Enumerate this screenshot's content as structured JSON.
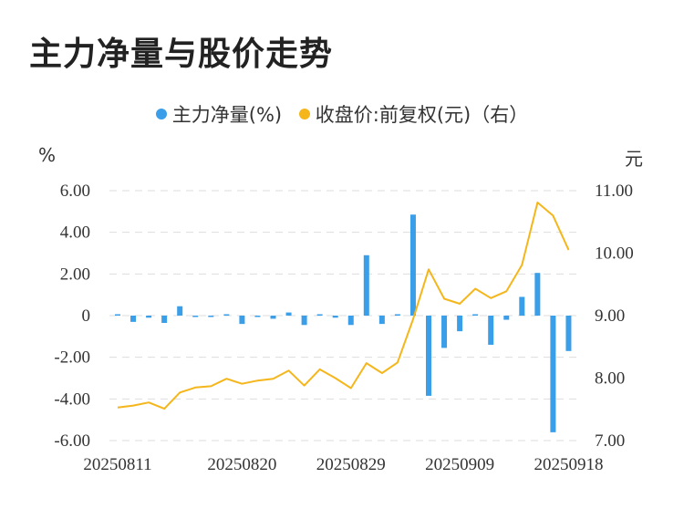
{
  "title": "主力净量与股价走势",
  "legend": {
    "net": "主力净量(%)",
    "price": "收盘价:前复权(元)（右）"
  },
  "axis": {
    "left_unit": "%",
    "right_unit": "元"
  },
  "colors": {
    "bar": "#3a9ee8",
    "line": "#f4b61a",
    "grid": "#dddddd"
  },
  "chart_data": {
    "type": "bar",
    "x_labels_shown": [
      "20250811",
      "20250820",
      "20250829",
      "20250909",
      "20250918"
    ],
    "y_left": {
      "ticks": [
        "6.00",
        "4.00",
        "2.00",
        "0",
        "-2.00",
        "-4.00",
        "-6.00"
      ],
      "range": [
        -6,
        6
      ]
    },
    "y_right": {
      "ticks": [
        "11.00",
        "10.00",
        "9.00",
        "8.00",
        "7.00"
      ],
      "range": [
        7,
        11
      ]
    },
    "grid": true,
    "series": [
      {
        "name": "主力净量(%)",
        "type": "bar",
        "axis": "left",
        "values": [
          0.05,
          -0.3,
          -0.1,
          -0.35,
          0.45,
          -0.05,
          -0.05,
          0.05,
          -0.4,
          -0.05,
          -0.15,
          0.15,
          -0.45,
          0.05,
          -0.1,
          -0.45,
          2.9,
          -0.4,
          0.05,
          4.85,
          -3.85,
          -1.55,
          -0.75,
          0.0,
          -1.4,
          -0.2,
          0.9,
          2.05,
          -5.6,
          -1.7
        ]
      },
      {
        "name": "收盘价:前复权(元)（右）",
        "type": "line",
        "axis": "right",
        "values": [
          7.53,
          7.56,
          7.61,
          7.51,
          7.77,
          7.85,
          7.87,
          7.99,
          7.91,
          7.96,
          7.99,
          8.12,
          7.88,
          8.14,
          8.0,
          7.84,
          8.24,
          8.08,
          8.25,
          8.94,
          9.74,
          9.27,
          9.19,
          9.43,
          9.28,
          9.39,
          9.81,
          10.81,
          10.6,
          10.05
        ]
      }
    ]
  }
}
